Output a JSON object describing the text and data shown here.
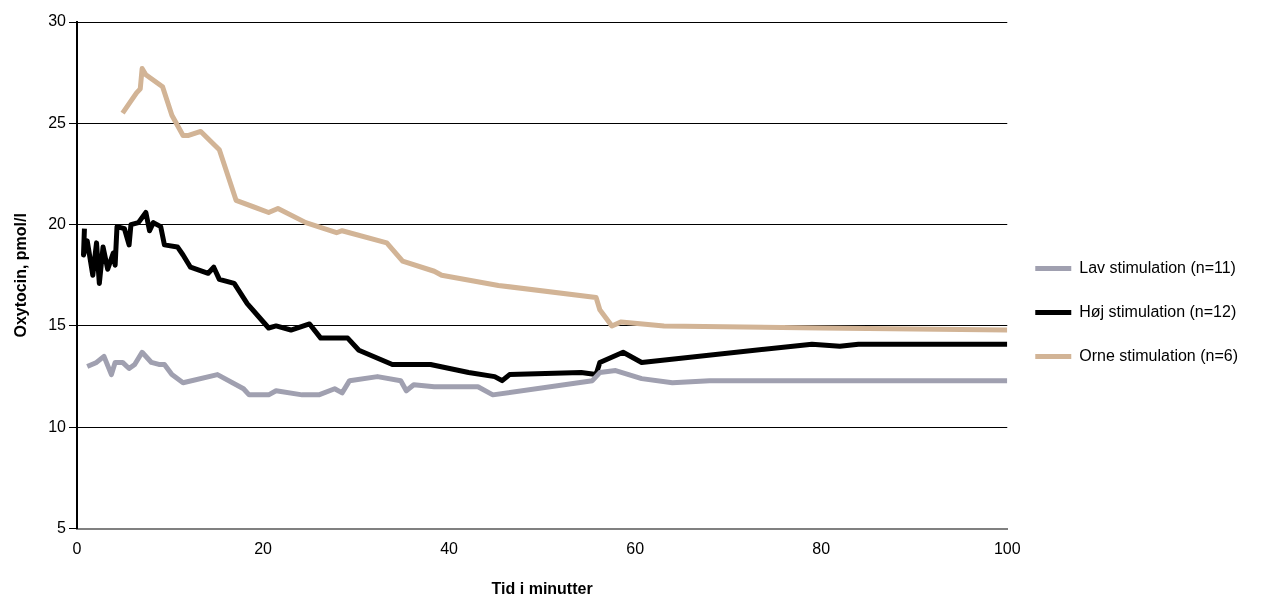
{
  "chart_data": {
    "type": "line",
    "xlabel": "Tid i minutter",
    "ylabel": "Oxytocin, pmol/l",
    "xlim": [
      0,
      100
    ],
    "xticks": [
      0,
      20,
      40,
      60,
      80,
      100
    ],
    "ylim": [
      5,
      30
    ],
    "yticks": [
      5,
      10,
      15,
      20,
      25,
      30
    ],
    "grid": "y",
    "legend": "right",
    "marker": "none",
    "line_style": "solid",
    "series": [
      {
        "name": "Lav stimulation (n=11)",
        "color": "#a0a0b0",
        "x": [
          1.1,
          2.1,
          2.9,
          3.7,
          4.1,
          4.9,
          5.6,
          6.2,
          7.0,
          8.0,
          8.8,
          9.4,
          10.2,
          11.4,
          15.1,
          17.9,
          18.5,
          20.6,
          21.4,
          24.2,
          26.0,
          27.7,
          28.5,
          29.3,
          32.3,
          34.8,
          35.4,
          36.2,
          38.4,
          43.1,
          44.7,
          55.4,
          56.2,
          57.9,
          60.7,
          64,
          68,
          100
        ],
        "values": [
          13.0,
          13.2,
          13.5,
          12.6,
          13.2,
          13.2,
          12.9,
          13.1,
          13.7,
          13.2,
          13.1,
          13.1,
          12.6,
          12.2,
          12.6,
          11.9,
          11.6,
          11.6,
          11.8,
          11.6,
          11.6,
          11.9,
          11.7,
          12.3,
          12.5,
          12.3,
          11.8,
          12.1,
          12.0,
          12.0,
          11.6,
          12.3,
          12.7,
          12.8,
          12.4,
          12.2,
          12.3,
          12.3
        ]
      },
      {
        "name": "Høj stimulation (n=12)",
        "color": "#000000",
        "x": [
          0.8,
          0.7,
          1.1,
          1.7,
          2.1,
          2.4,
          2.8,
          3.3,
          3.9,
          4.1,
          4.3,
          5.1,
          5.6,
          5.8,
          6.6,
          7.4,
          7.8,
          8.2,
          9.0,
          9.4,
          10.8,
          11.4,
          12.2,
          14.1,
          14.7,
          15.3,
          16.9,
          18.3,
          20.6,
          21.4,
          23.0,
          25.0,
          26.2,
          29.1,
          30.3,
          33.9,
          36.0,
          38.0,
          42.1,
          44.9,
          45.7,
          46.5,
          54.2,
          55.8,
          56.2,
          58.7,
          60.7,
          79,
          82,
          84,
          100
        ],
        "values": [
          19.8,
          18.5,
          19.2,
          17.5,
          19.1,
          17.1,
          18.9,
          17.8,
          18.6,
          18.0,
          19.9,
          19.8,
          19.0,
          20.0,
          20.1,
          20.6,
          19.7,
          20.1,
          19.9,
          19.0,
          18.9,
          18.5,
          17.9,
          17.6,
          17.9,
          17.3,
          17.1,
          16.1,
          14.9,
          15.0,
          14.8,
          15.1,
          14.4,
          14.4,
          13.8,
          13.1,
          13.1,
          13.1,
          12.7,
          12.5,
          12.3,
          12.6,
          12.7,
          12.6,
          13.2,
          13.7,
          13.2,
          14.1,
          14.0,
          14.1,
          14.1
        ]
      },
      {
        "name": "Orne stimulation (n=6)",
        "color": "#d2b496",
        "x": [
          4.9,
          6.4,
          6.8,
          7.0,
          7.4,
          9.2,
          10.2,
          11.4,
          12.0,
          13.3,
          15.3,
          17.1,
          20.6,
          21.6,
          24.6,
          27.9,
          28.5,
          33.3,
          35.0,
          38.4,
          39.2,
          45.3,
          55.8,
          56.2,
          57.5,
          58.5,
          63.1,
          80,
          100
        ],
        "values": [
          25.5,
          26.5,
          26.7,
          27.7,
          27.4,
          26.8,
          25.4,
          24.4,
          24.4,
          24.6,
          23.7,
          21.2,
          20.6,
          20.8,
          20.1,
          19.6,
          19.7,
          19.1,
          18.2,
          17.7,
          17.5,
          17.0,
          16.4,
          15.8,
          15.0,
          15.2,
          15.0,
          14.9,
          14.8
        ]
      }
    ]
  }
}
